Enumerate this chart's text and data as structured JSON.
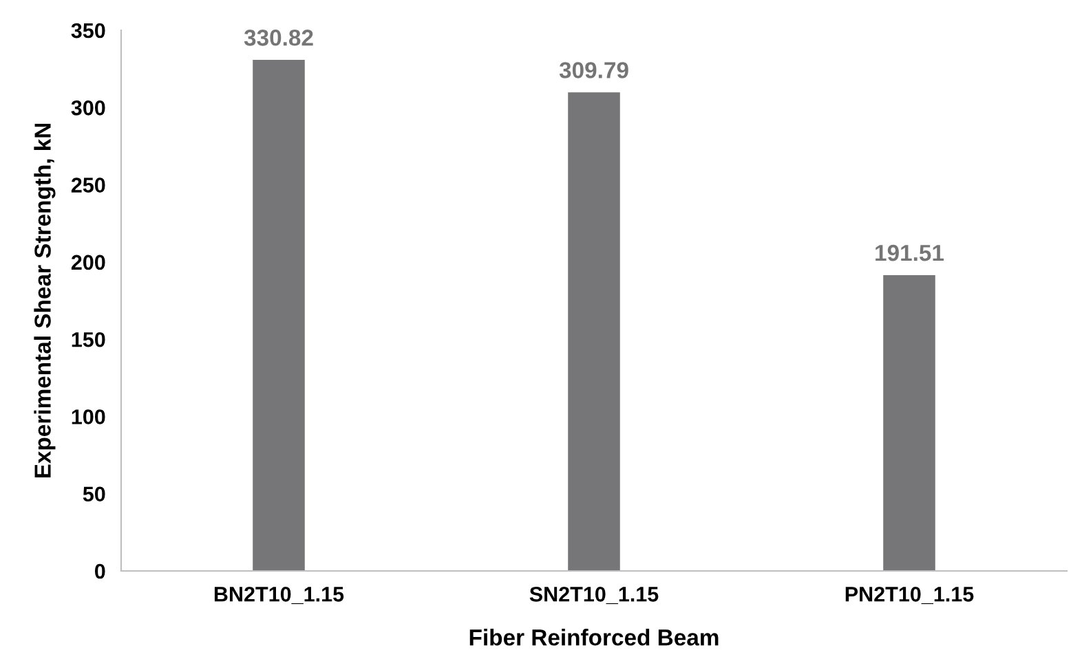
{
  "chart_data": {
    "type": "bar",
    "xlabel": "Fiber Reinforced Beam",
    "ylabel": "Experimental Shear Strength, kN",
    "categories": [
      "BN2T10_1.15",
      "SN2T10_1.15",
      "PN2T10_1.15"
    ],
    "values": [
      330.82,
      309.79,
      191.51
    ],
    "color": "#767679",
    "ylim": [
      0,
      350
    ],
    "yticks": [
      0,
      50,
      100,
      150,
      200,
      250,
      300,
      350
    ],
    "grid": false,
    "data_labels": true
  }
}
